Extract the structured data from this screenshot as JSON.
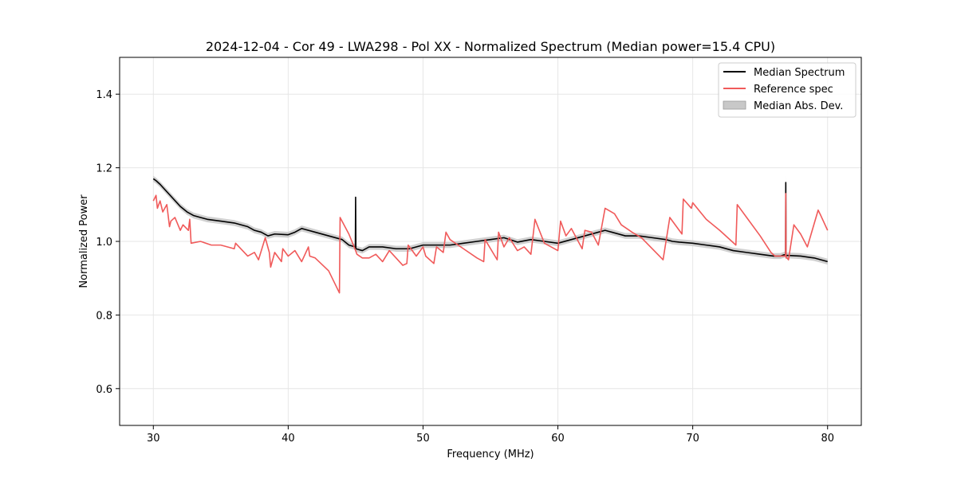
{
  "chart_data": {
    "type": "line",
    "title": "2024-12-04 - Cor 49 - LWA298 - Pol XX - Normalized Spectrum (Median power=15.4 CPU)",
    "xlabel": "Frequency (MHz)",
    "ylabel": "Normalized Power",
    "xlim": [
      27.5,
      82.5
    ],
    "ylim": [
      0.5,
      1.5
    ],
    "xticks": [
      30,
      40,
      50,
      60,
      70,
      80
    ],
    "xtick_labels": [
      "30",
      "40",
      "50",
      "60",
      "70",
      "80"
    ],
    "yticks": [
      0.6,
      0.8,
      1.0,
      1.2,
      1.4
    ],
    "ytick_labels": [
      "0.6",
      "0.8",
      "1.0",
      "1.2",
      "1.4"
    ],
    "grid": true,
    "legend_position": "top-right",
    "colors": {
      "median": "#000000",
      "reference": "#f05a5a",
      "mad": "#c8c8c8",
      "grid": "#e6e6e6"
    },
    "series": [
      {
        "name": "Median Spectrum",
        "style": "line",
        "x": [
          30.0,
          30.2,
          30.5,
          31.0,
          31.5,
          32.0,
          32.5,
          33.0,
          33.5,
          34.0,
          35.0,
          36.0,
          37.0,
          37.5,
          38.0,
          38.5,
          39.0,
          40.0,
          40.5,
          41.0,
          42.0,
          43.0,
          44.0,
          44.5,
          44.98,
          45.0,
          45.02,
          45.5,
          46.0,
          47.0,
          48.0,
          49.0,
          50.0,
          51.0,
          52.0,
          53.0,
          54.0,
          55.0,
          56.0,
          57.0,
          58.0,
          59.0,
          60.0,
          61.0,
          62.0,
          63.0,
          63.5,
          64.0,
          65.0,
          66.0,
          67.0,
          68.0,
          68.5,
          69.0,
          70.0,
          71.0,
          72.0,
          73.0,
          74.0,
          75.0,
          76.0,
          76.5,
          76.88,
          76.9,
          76.92,
          77.0,
          78.0,
          79.0,
          80.0
        ],
        "y": [
          1.17,
          1.165,
          1.155,
          1.135,
          1.115,
          1.095,
          1.08,
          1.07,
          1.065,
          1.06,
          1.055,
          1.05,
          1.04,
          1.03,
          1.025,
          1.015,
          1.02,
          1.018,
          1.025,
          1.035,
          1.025,
          1.015,
          1.005,
          0.99,
          0.985,
          1.12,
          0.98,
          0.975,
          0.985,
          0.985,
          0.98,
          0.98,
          0.99,
          0.99,
          0.99,
          0.995,
          1.0,
          1.005,
          1.01,
          0.998,
          1.005,
          1.0,
          0.995,
          1.005,
          1.015,
          1.025,
          1.03,
          1.025,
          1.015,
          1.015,
          1.01,
          1.005,
          1.0,
          0.998,
          0.995,
          0.99,
          0.985,
          0.975,
          0.97,
          0.965,
          0.96,
          0.96,
          0.965,
          1.16,
          0.96,
          0.962,
          0.96,
          0.955,
          0.945
        ]
      },
      {
        "name": "Reference spec",
        "style": "line",
        "x": [
          30.0,
          30.2,
          30.3,
          30.5,
          30.7,
          31.0,
          31.2,
          31.3,
          31.6,
          32.0,
          32.2,
          32.6,
          32.7,
          32.8,
          33.5,
          34.3,
          35.0,
          36.0,
          36.1,
          37.0,
          37.5,
          37.8,
          38.3,
          38.6,
          38.7,
          39.0,
          39.5,
          39.6,
          40.0,
          40.5,
          41.0,
          41.5,
          41.6,
          42.0,
          43.0,
          43.8,
          43.85,
          44.5,
          45.0,
          45.1,
          45.5,
          46.0,
          46.5,
          47.0,
          47.5,
          48.0,
          48.5,
          48.8,
          48.9,
          49.5,
          50.0,
          50.2,
          50.8,
          51.0,
          51.5,
          51.7,
          52.0,
          53.0,
          54.0,
          54.5,
          54.6,
          55.5,
          55.6,
          56.0,
          56.4,
          57.0,
          57.5,
          58.0,
          58.3,
          59.0,
          60.0,
          60.2,
          60.6,
          61.0,
          61.8,
          62.0,
          62.5,
          63.0,
          63.5,
          64.2,
          64.7,
          65.5,
          66.2,
          67.8,
          68.3,
          69.2,
          69.3,
          69.9,
          70.0,
          71.0,
          72.0,
          73.2,
          73.3,
          74.0,
          75.0,
          75.8,
          76.1,
          76.7,
          76.88,
          76.9,
          76.92,
          77.0,
          77.1,
          77.5,
          78.0,
          78.5,
          79.3,
          79.5,
          80.0
        ],
        "y": [
          1.11,
          1.125,
          1.09,
          1.11,
          1.08,
          1.1,
          1.04,
          1.055,
          1.065,
          1.03,
          1.045,
          1.03,
          1.06,
          0.995,
          1.0,
          0.99,
          0.99,
          0.98,
          0.995,
          0.96,
          0.97,
          0.95,
          1.01,
          0.97,
          0.93,
          0.97,
          0.945,
          0.98,
          0.96,
          0.975,
          0.945,
          0.985,
          0.96,
          0.955,
          0.92,
          0.86,
          1.065,
          1.02,
          0.975,
          0.965,
          0.955,
          0.955,
          0.965,
          0.945,
          0.975,
          0.955,
          0.935,
          0.94,
          0.99,
          0.96,
          0.985,
          0.96,
          0.94,
          0.985,
          0.97,
          1.025,
          1.005,
          0.98,
          0.955,
          0.945,
          1.005,
          0.95,
          1.025,
          0.985,
          1.01,
          0.975,
          0.985,
          0.965,
          1.06,
          0.995,
          0.975,
          1.055,
          1.015,
          1.035,
          0.98,
          1.03,
          1.025,
          0.99,
          1.09,
          1.075,
          1.045,
          1.025,
          1.01,
          0.95,
          1.065,
          1.02,
          1.115,
          1.09,
          1.105,
          1.06,
          1.03,
          0.99,
          1.1,
          1.065,
          1.015,
          0.97,
          0.96,
          0.96,
          0.96,
          1.13,
          0.955,
          0.955,
          0.95,
          1.045,
          1.02,
          0.985,
          1.085,
          1.07,
          1.03
        ]
      },
      {
        "name": "Median Abs. Dev.",
        "style": "band",
        "x": [
          30.0,
          30.2,
          30.5,
          31.0,
          31.5,
          32.0,
          32.5,
          33.0,
          33.5,
          34.0,
          35.0,
          36.0,
          37.0,
          37.5,
          38.0,
          38.5,
          39.0,
          40.0,
          40.5,
          41.0,
          42.0,
          43.0,
          44.0,
          44.5,
          44.98,
          45.0,
          45.02,
          45.5,
          46.0,
          47.0,
          48.0,
          49.0,
          50.0,
          51.0,
          52.0,
          53.0,
          54.0,
          55.0,
          56.0,
          57.0,
          58.0,
          59.0,
          60.0,
          61.0,
          62.0,
          63.0,
          63.5,
          64.0,
          65.0,
          66.0,
          67.0,
          68.0,
          68.5,
          69.0,
          70.0,
          71.0,
          72.0,
          73.0,
          74.0,
          75.0,
          76.0,
          76.5,
          76.88,
          76.9,
          76.92,
          77.0,
          78.0,
          79.0,
          80.0
        ],
        "lower": [
          1.162,
          1.157,
          1.147,
          1.127,
          1.107,
          1.087,
          1.072,
          1.062,
          1.057,
          1.052,
          1.047,
          1.042,
          1.032,
          1.022,
          1.017,
          1.007,
          1.012,
          1.01,
          1.017,
          1.027,
          1.017,
          1.007,
          0.997,
          0.982,
          0.977,
          1.11,
          0.972,
          0.967,
          0.977,
          0.977,
          0.972,
          0.972,
          0.982,
          0.982,
          0.982,
          0.987,
          0.992,
          0.997,
          1.002,
          0.99,
          0.997,
          0.992,
          0.987,
          0.997,
          1.007,
          1.017,
          1.022,
          1.017,
          1.007,
          1.007,
          1.002,
          0.997,
          0.992,
          0.99,
          0.987,
          0.982,
          0.977,
          0.967,
          0.962,
          0.957,
          0.952,
          0.952,
          0.957,
          1.145,
          0.952,
          0.954,
          0.952,
          0.947,
          0.937
        ],
        "upper": [
          1.178,
          1.173,
          1.163,
          1.143,
          1.123,
          1.103,
          1.088,
          1.078,
          1.073,
          1.068,
          1.063,
          1.058,
          1.048,
          1.038,
          1.033,
          1.023,
          1.028,
          1.026,
          1.033,
          1.043,
          1.033,
          1.023,
          1.013,
          0.998,
          0.993,
          1.13,
          0.988,
          0.983,
          0.993,
          0.993,
          0.988,
          0.988,
          0.998,
          0.998,
          0.998,
          1.003,
          1.008,
          1.013,
          1.018,
          1.006,
          1.013,
          1.008,
          1.003,
          1.013,
          1.023,
          1.033,
          1.038,
          1.033,
          1.023,
          1.023,
          1.018,
          1.013,
          1.008,
          1.006,
          1.003,
          0.998,
          0.993,
          0.983,
          0.978,
          0.973,
          0.968,
          0.968,
          0.973,
          1.18,
          0.968,
          0.97,
          0.968,
          0.963,
          0.953
        ]
      }
    ],
    "legend": [
      {
        "label": "Median Spectrum",
        "kind": "line",
        "color": "#000000"
      },
      {
        "label": "Reference spec",
        "kind": "line",
        "color": "#f05a5a"
      },
      {
        "label": "Median Abs. Dev.",
        "kind": "patch",
        "color": "#c8c8c8"
      }
    ]
  }
}
